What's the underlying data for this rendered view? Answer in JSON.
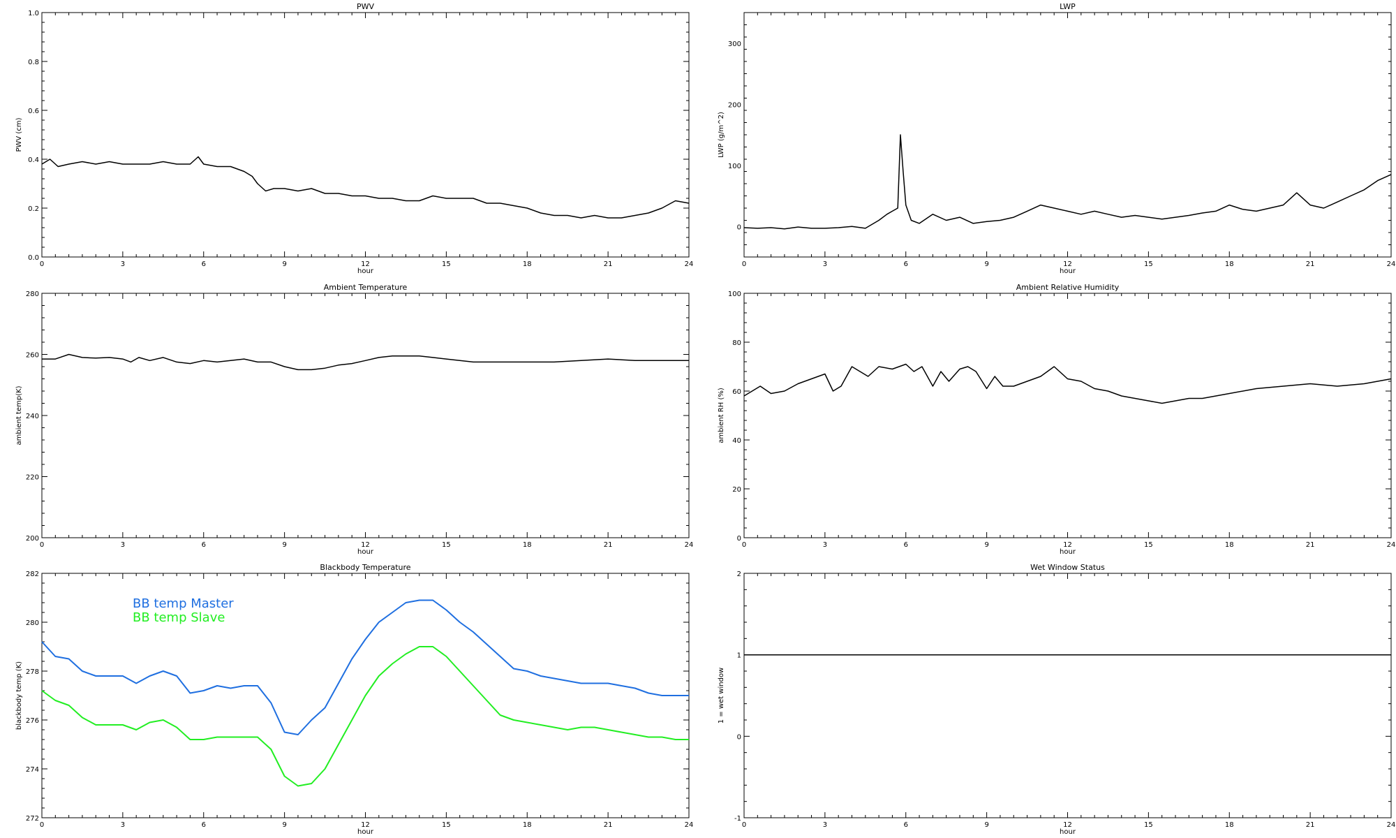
{
  "chart_data": [
    {
      "type": "line",
      "title": "PWV",
      "xlabel": "hour",
      "ylabel": "PWV (cm)",
      "xlim": [
        0,
        24
      ],
      "ylim": [
        0.0,
        1.0
      ],
      "xticks": [
        0,
        3,
        6,
        9,
        12,
        15,
        18,
        21,
        24
      ],
      "yticks": [
        "0.0",
        "0.2",
        "0.4",
        "0.6",
        "0.8",
        "1.0"
      ],
      "grid": false,
      "series": [
        {
          "color": "#000000",
          "x": [
            0,
            0.3,
            0.6,
            1,
            1.5,
            2,
            2.5,
            3,
            3.5,
            4,
            4.5,
            5,
            5.5,
            5.8,
            6,
            6.5,
            7,
            7.5,
            7.8,
            8,
            8.3,
            8.6,
            9,
            9.5,
            10,
            10.5,
            11,
            11.5,
            12,
            12.5,
            13,
            13.5,
            14,
            14.5,
            15,
            15.5,
            16,
            16.5,
            17,
            17.5,
            18,
            18.5,
            19,
            19.5,
            20,
            20.5,
            21,
            21.5,
            22,
            22.5,
            23,
            23.5,
            24
          ],
          "y": [
            0.38,
            0.4,
            0.37,
            0.38,
            0.39,
            0.38,
            0.39,
            0.38,
            0.38,
            0.38,
            0.39,
            0.38,
            0.38,
            0.41,
            0.38,
            0.37,
            0.37,
            0.35,
            0.33,
            0.3,
            0.27,
            0.28,
            0.28,
            0.27,
            0.28,
            0.26,
            0.26,
            0.25,
            0.25,
            0.24,
            0.24,
            0.23,
            0.23,
            0.25,
            0.24,
            0.24,
            0.24,
            0.22,
            0.22,
            0.21,
            0.2,
            0.18,
            0.17,
            0.17,
            0.16,
            0.17,
            0.16,
            0.16,
            0.17,
            0.18,
            0.2,
            0.23,
            0.22
          ]
        }
      ]
    },
    {
      "type": "line",
      "title": "LWP",
      "xlabel": "hour",
      "ylabel": "LWP (g/m^2)",
      "xlim": [
        0,
        24
      ],
      "ylim": [
        -50,
        350
      ],
      "xticks": [
        0,
        3,
        6,
        9,
        12,
        15,
        18,
        21,
        24
      ],
      "yticks": [
        "0",
        "100",
        "200",
        "300"
      ],
      "grid": false,
      "series": [
        {
          "color": "#000000",
          "x": [
            0,
            0.5,
            1,
            1.5,
            2,
            2.5,
            3,
            3.5,
            4,
            4.5,
            5,
            5.3,
            5.5,
            5.7,
            5.8,
            5.9,
            6,
            6.2,
            6.5,
            7,
            7.5,
            8,
            8.5,
            9,
            9.5,
            10,
            10.5,
            11,
            11.5,
            12,
            12.5,
            13,
            13.5,
            14,
            14.5,
            15,
            15.5,
            16,
            16.5,
            17,
            17.5,
            18,
            18.5,
            19,
            19.5,
            20,
            20.5,
            21,
            21.5,
            22,
            22.5,
            23,
            23.5,
            24
          ],
          "y": [
            -2,
            -3,
            -2,
            -4,
            -1,
            -3,
            -3,
            -2,
            0,
            -3,
            10,
            20,
            25,
            30,
            150,
            90,
            35,
            10,
            5,
            20,
            10,
            15,
            5,
            8,
            10,
            15,
            25,
            35,
            30,
            25,
            20,
            25,
            20,
            15,
            18,
            15,
            12,
            15,
            18,
            22,
            25,
            35,
            28,
            25,
            30,
            35,
            55,
            35,
            30,
            40,
            50,
            60,
            75,
            85
          ]
        }
      ]
    },
    {
      "type": "line",
      "title": "Ambient Temperature",
      "xlabel": "hour",
      "ylabel": "ambient temp(K)",
      "xlim": [
        0,
        24
      ],
      "ylim": [
        200,
        280
      ],
      "xticks": [
        0,
        3,
        6,
        9,
        12,
        15,
        18,
        21,
        24
      ],
      "yticks": [
        "200",
        "220",
        "240",
        "260",
        "280"
      ],
      "grid": false,
      "series": [
        {
          "color": "#000000",
          "x": [
            0,
            0.5,
            1,
            1.5,
            2,
            2.5,
            3,
            3.3,
            3.6,
            4,
            4.5,
            5,
            5.5,
            6,
            6.5,
            7,
            7.5,
            8,
            8.5,
            9,
            9.5,
            10,
            10.5,
            11,
            11.5,
            12,
            12.5,
            13,
            13.5,
            14,
            14.5,
            15,
            15.5,
            16,
            16.5,
            17,
            18,
            19,
            20,
            21,
            22,
            23,
            24
          ],
          "y": [
            258.5,
            258.5,
            260,
            259,
            258.8,
            259,
            258.5,
            257.5,
            259,
            258,
            259,
            257.5,
            257,
            258,
            257.5,
            258,
            258.5,
            257.5,
            257.5,
            256,
            255,
            255,
            255.5,
            256.5,
            257,
            258,
            259,
            259.5,
            259.5,
            259.5,
            259,
            258.5,
            258,
            257.5,
            257.5,
            257.5,
            257.5,
            257.5,
            258,
            258.5,
            258,
            258,
            258
          ]
        }
      ]
    },
    {
      "type": "line",
      "title": "Ambient Relative Humidity",
      "xlabel": "hour",
      "ylabel": "ambient RH (%)",
      "xlim": [
        0,
        24
      ],
      "ylim": [
        0,
        100
      ],
      "xticks": [
        0,
        3,
        6,
        9,
        12,
        15,
        18,
        21,
        24
      ],
      "yticks": [
        "0",
        "20",
        "40",
        "60",
        "80",
        "100"
      ],
      "grid": false,
      "series": [
        {
          "color": "#000000",
          "x": [
            0,
            0.3,
            0.6,
            1,
            1.5,
            2,
            2.5,
            3,
            3.3,
            3.6,
            4,
            4.3,
            4.6,
            5,
            5.5,
            6,
            6.3,
            6.6,
            7,
            7.3,
            7.6,
            8,
            8.3,
            8.6,
            9,
            9.3,
            9.6,
            10,
            10.5,
            11,
            11.5,
            12,
            12.5,
            13,
            13.5,
            14,
            14.5,
            15,
            15.5,
            16,
            16.5,
            17,
            18,
            19,
            20,
            21,
            22,
            23,
            24
          ],
          "y": [
            58,
            60,
            62,
            59,
            60,
            63,
            65,
            67,
            60,
            62,
            70,
            68,
            66,
            70,
            69,
            71,
            68,
            70,
            62,
            68,
            64,
            69,
            70,
            68,
            61,
            66,
            62,
            62,
            64,
            66,
            70,
            65,
            64,
            61,
            60,
            58,
            57,
            56,
            55,
            56,
            57,
            57,
            59,
            61,
            62,
            63,
            62,
            63,
            65
          ]
        }
      ]
    },
    {
      "type": "line",
      "title": "Blackbody Temperature",
      "xlabel": "hour",
      "ylabel": "blackbody temp (K)",
      "xlim": [
        0,
        24
      ],
      "ylim": [
        272,
        282
      ],
      "xticks": [
        0,
        3,
        6,
        9,
        12,
        15,
        18,
        21,
        24
      ],
      "yticks": [
        "272",
        "274",
        "276",
        "278",
        "280",
        "282"
      ],
      "grid": false,
      "legend": "top-left",
      "series": [
        {
          "name": "BB temp Master",
          "color": "#1f6fe0",
          "x": [
            0,
            0.5,
            1,
            1.5,
            2,
            2.5,
            3,
            3.5,
            4,
            4.5,
            5,
            5.5,
            6,
            6.5,
            7,
            7.5,
            8,
            8.5,
            9,
            9.5,
            10,
            10.5,
            11,
            11.5,
            12,
            12.5,
            13,
            13.5,
            14,
            14.5,
            15,
            15.5,
            16,
            16.5,
            17,
            17.5,
            18,
            18.5,
            19,
            19.5,
            20,
            20.5,
            21,
            21.5,
            22,
            22.5,
            23,
            23.5,
            24
          ],
          "y": [
            279.2,
            278.6,
            278.5,
            278,
            277.8,
            277.8,
            277.8,
            277.5,
            277.8,
            278,
            277.8,
            277.1,
            277.2,
            277.4,
            277.3,
            277.4,
            277.4,
            276.7,
            275.5,
            275.4,
            276,
            276.5,
            277.5,
            278.5,
            279.3,
            280,
            280.4,
            280.8,
            280.9,
            280.9,
            280.5,
            280,
            279.6,
            279.1,
            278.6,
            278.1,
            278,
            277.8,
            277.7,
            277.6,
            277.5,
            277.5,
            277.5,
            277.4,
            277.3,
            277.1,
            277,
            277,
            277
          ]
        },
        {
          "name": "BB temp Slave",
          "color": "#22ee22",
          "x": [
            0,
            0.5,
            1,
            1.5,
            2,
            2.5,
            3,
            3.5,
            4,
            4.5,
            5,
            5.5,
            6,
            6.5,
            7,
            7.5,
            8,
            8.5,
            9,
            9.5,
            10,
            10.5,
            11,
            11.5,
            12,
            12.5,
            13,
            13.5,
            14,
            14.5,
            15,
            15.5,
            16,
            16.5,
            17,
            17.5,
            18,
            18.5,
            19,
            19.5,
            20,
            20.5,
            21,
            21.5,
            22,
            22.5,
            23,
            23.5,
            24
          ],
          "y": [
            277.2,
            276.8,
            276.6,
            276.1,
            275.8,
            275.8,
            275.8,
            275.6,
            275.9,
            276,
            275.7,
            275.2,
            275.2,
            275.3,
            275.3,
            275.3,
            275.3,
            274.8,
            273.7,
            273.3,
            273.4,
            274,
            275,
            276,
            277,
            277.8,
            278.3,
            278.7,
            279,
            279,
            278.6,
            278,
            277.4,
            276.8,
            276.2,
            276,
            275.9,
            275.8,
            275.7,
            275.6,
            275.7,
            275.7,
            275.6,
            275.5,
            275.4,
            275.3,
            275.3,
            275.2,
            275.2
          ]
        }
      ]
    },
    {
      "type": "line",
      "title": "Wet Window Status",
      "xlabel": "hour",
      "ylabel": "1 = wet window",
      "xlim": [
        0,
        24
      ],
      "ylim": [
        -1,
        2
      ],
      "xticks": [
        0,
        3,
        6,
        9,
        12,
        15,
        18,
        21,
        24
      ],
      "yticks": [
        "-1",
        "0",
        "1",
        "2"
      ],
      "grid": false,
      "series": [
        {
          "color": "#000000",
          "x": [
            0,
            24
          ],
          "y": [
            1,
            1
          ]
        }
      ]
    }
  ]
}
